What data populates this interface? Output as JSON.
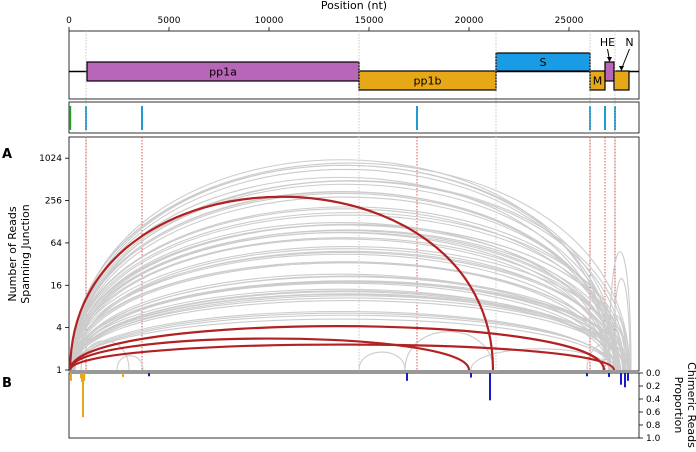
{
  "chart_data": {
    "type": "arc",
    "panels": [
      "A",
      "B"
    ],
    "top_axis": {
      "label": "Position (nt)",
      "range": [
        0,
        28500
      ],
      "ticks": [
        0,
        5000,
        10000,
        15000,
        20000,
        25000
      ],
      "tick_labels": [
        "0",
        "5000",
        "10000",
        "15000",
        "20000",
        "25000"
      ]
    },
    "genes": [
      {
        "name": "pp1a",
        "start": 900,
        "end": 14500,
        "row": "lower",
        "color": "#b866b8"
      },
      {
        "name": "pp1b",
        "start": 14500,
        "end": 21350,
        "row": "middle",
        "color": "#e6a817"
      },
      {
        "name": "S",
        "start": 21350,
        "end": 26050,
        "row": "upper",
        "color": "#1a9be6"
      },
      {
        "name": "M",
        "start": 26050,
        "end": 26800,
        "row": "middle",
        "color": "#e6a817"
      },
      {
        "name": "HE",
        "start": 26800,
        "end": 27250,
        "row": "lower",
        "color": "#b866b8"
      },
      {
        "name": "N",
        "start": 27250,
        "end": 28000,
        "row": "middle",
        "color": "#e6a817"
      }
    ],
    "site_markers": [
      {
        "pos": 60,
        "color": "#2ca02c"
      },
      {
        "pos": 850,
        "color": "#1f9bd1"
      },
      {
        "pos": 3650,
        "color": "#1f9bd1"
      },
      {
        "pos": 17400,
        "color": "#1f9bd1"
      },
      {
        "pos": 26050,
        "color": "#1f9bd1"
      },
      {
        "pos": 26800,
        "color": "#1f9bd1"
      },
      {
        "pos": 27300,
        "color": "#1f9bd1"
      }
    ],
    "red_guides": [
      850,
      3650,
      17400,
      26050,
      26800,
      27300
    ],
    "gray_guides": [
      850,
      14500,
      21350,
      26050,
      27300
    ],
    "arcs_axis": {
      "ylabel": [
        "Number of Reads",
        "Spanning Junction"
      ],
      "scale": "log2",
      "range": [
        1,
        2048
      ],
      "ticks": [
        1,
        4,
        16,
        64,
        256,
        1024
      ],
      "tick_labels": [
        "1",
        "4",
        "16",
        "64",
        "256",
        "1024"
      ]
    },
    "highlighted_arcs": [
      {
        "start": 60,
        "end": 21200,
        "reads": 290,
        "color": "#b22222"
      },
      {
        "start": 60,
        "end": 26750,
        "reads": 4.2,
        "color": "#b22222"
      },
      {
        "start": 60,
        "end": 20000,
        "reads": 2.8,
        "color": "#b22222"
      },
      {
        "start": 60,
        "end": 27250,
        "reads": 2.3,
        "color": "#b22222"
      }
    ],
    "proportion_axis": {
      "ylabel": [
        "Proportion",
        "Chimeric Reads"
      ],
      "range": [
        0,
        1
      ],
      "ticks": [
        0.0,
        0.2,
        0.4,
        0.6,
        0.8,
        1.0
      ],
      "tick_labels": [
        "0.0",
        "0.2",
        "0.4",
        "0.6",
        "0.8",
        "1.0"
      ]
    },
    "proportion_bars": [
      {
        "pos": 100,
        "value": 0.12,
        "color": "#e6a817"
      },
      {
        "pos": 600,
        "value": 0.08,
        "color": "#e6a817"
      },
      {
        "pos": 650,
        "value": 0.14,
        "color": "#e6a817"
      },
      {
        "pos": 700,
        "value": 0.68,
        "color": "#e6a817"
      },
      {
        "pos": 760,
        "value": 0.12,
        "color": "#e6a817"
      },
      {
        "pos": 2700,
        "value": 0.06,
        "color": "#e6a817"
      },
      {
        "pos": 4000,
        "value": 0.05,
        "color": "#1a1acc"
      },
      {
        "pos": 16900,
        "value": 0.12,
        "color": "#1a1acc"
      },
      {
        "pos": 20100,
        "value": 0.07,
        "color": "#1a1acc"
      },
      {
        "pos": 21050,
        "value": 0.42,
        "color": "#1a1acc"
      },
      {
        "pos": 25900,
        "value": 0.05,
        "color": "#1a1acc"
      },
      {
        "pos": 27000,
        "value": 0.06,
        "color": "#1a1acc"
      },
      {
        "pos": 27600,
        "value": 0.18,
        "color": "#1a1acc"
      },
      {
        "pos": 27800,
        "value": 0.22,
        "color": "#1a1acc"
      },
      {
        "pos": 27950,
        "value": 0.12,
        "color": "#1a1acc"
      }
    ]
  }
}
